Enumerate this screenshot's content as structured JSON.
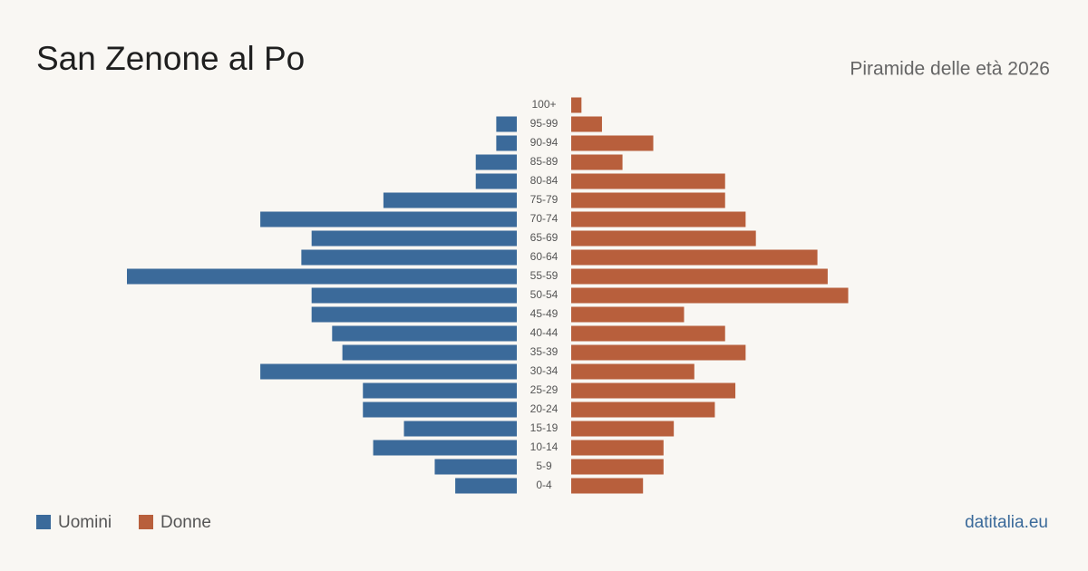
{
  "chart_data": {
    "type": "pyramid",
    "title": "San Zenone al Po",
    "subtitle": "Piramide delle età 2026",
    "source": "datitalia.eu",
    "categories": [
      "100+",
      "95-99",
      "90-94",
      "85-89",
      "80-84",
      "75-79",
      "70-74",
      "65-69",
      "60-64",
      "55-59",
      "50-54",
      "45-49",
      "40-44",
      "35-39",
      "30-34",
      "25-29",
      "20-24",
      "15-19",
      "10-14",
      "5-9",
      "0-4"
    ],
    "series": [
      {
        "name": "Uomini",
        "color": "#3b6a9a",
        "values": [
          0,
          2,
          2,
          4,
          4,
          13,
          25,
          20,
          21,
          38,
          20,
          20,
          18,
          17,
          25,
          15,
          15,
          11,
          14,
          8,
          6
        ]
      },
      {
        "name": "Donne",
        "color": "#b85f3c",
        "values": [
          1,
          3,
          8,
          5,
          15,
          15,
          17,
          18,
          24,
          25,
          27,
          11,
          15,
          17,
          12,
          16,
          14,
          10,
          9,
          9,
          7
        ]
      }
    ]
  }
}
